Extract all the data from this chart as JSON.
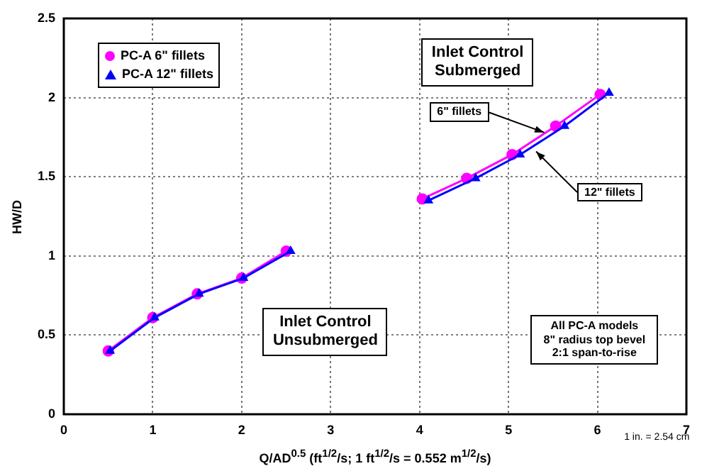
{
  "chart_data": {
    "type": "line",
    "xlabel": "Q/AD$^{0.5}$ (ft$^{1/2}$/s; 1 ft$^{1/2}$/s = 0.552 m$^{1/2}$/s)",
    "ylabel": "HW/D",
    "xlim": [
      0,
      7
    ],
    "xticks": [
      0,
      1,
      2,
      3,
      4,
      5,
      6,
      7
    ],
    "ylim": [
      0,
      2.5
    ],
    "yticks": [
      0,
      0.5,
      1,
      1.5,
      2,
      2.5
    ],
    "grid": true,
    "legend": "top left",
    "line_style": "solid",
    "series": [
      {
        "name": "PC-A 6\" fillets",
        "color": "#ff00ff",
        "marker": "circle",
        "x": [
          0.5,
          1,
          1.5,
          2,
          2.5,
          null,
          4.03,
          4.53,
          5.04,
          5.53,
          6.03
        ],
        "values": [
          0.4,
          0.61,
          0.76,
          0.86,
          1.03,
          null,
          1.36,
          1.49,
          1.64,
          1.82,
          2.02
        ]
      },
      {
        "name": "PC-A 12\" fillets",
        "color": "#0000ff",
        "marker": "triangle",
        "x": [
          0.52,
          1.02,
          1.52,
          2.02,
          2.55,
          null,
          4.1,
          4.63,
          5.13,
          5.63,
          6.13
        ],
        "values": [
          0.4,
          0.61,
          0.76,
          0.86,
          1.03,
          null,
          1.35,
          1.49,
          1.64,
          1.82,
          2.03
        ]
      }
    ],
    "annotations": [
      "Inlet Control\nSubmerged",
      "Inlet Control\nUnsubmerged",
      "All PC-A models\n8\" radius top bevel\n2:1 span-to-rise",
      "1 in. = 2.54 cm",
      {
        "text": "6\" fillets",
        "x": 5.4,
        "y": 1.78
      },
      {
        "text": "12\" fillets",
        "x": 5.31,
        "y": 1.66
      }
    ]
  }
}
